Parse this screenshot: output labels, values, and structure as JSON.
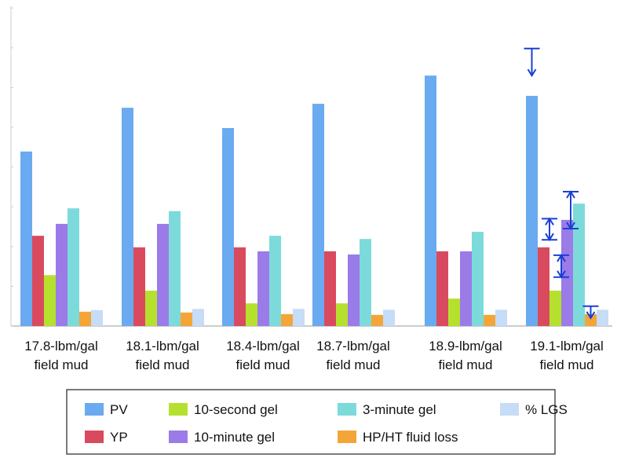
{
  "chart_data": {
    "type": "bar",
    "title": "",
    "xlabel": "",
    "ylabel": "",
    "ylim": [
      0,
      8
    ],
    "y_ticks_labeled": false,
    "grid": false,
    "legend_position": "bottom",
    "categories": [
      [
        "17.8-lbm/gal",
        "field mud"
      ],
      [
        "18.1-lbm/gal",
        "field mud"
      ],
      [
        "18.4-lbm/gal",
        "field mud"
      ],
      [
        "18.7-lbm/gal",
        "field mud"
      ],
      [
        "18.9-lbm/gal",
        "field mud"
      ],
      [
        "19.1-lbm/gal",
        "field mud"
      ]
    ],
    "series": [
      {
        "name": "PV",
        "color": "#6aaaf0",
        "values": [
          4.39,
          5.49,
          4.98,
          5.59,
          6.3,
          5.79
        ]
      },
      {
        "name": "YP",
        "color": "#d94a5e",
        "values": [
          2.27,
          1.98,
          1.98,
          1.88,
          1.88,
          1.98
        ]
      },
      {
        "name": "10-second gel",
        "color": "#b5e12e",
        "values": [
          1.28,
          0.89,
          0.57,
          0.57,
          0.69,
          0.89
        ]
      },
      {
        "name": "10-minute gel",
        "color": "#9b7be8",
        "values": [
          2.57,
          2.57,
          1.88,
          1.8,
          1.88,
          2.67
        ]
      },
      {
        "name": "3-minute gel",
        "color": "#7ddada",
        "values": [
          2.96,
          2.89,
          2.27,
          2.19,
          2.37,
          3.08
        ]
      },
      {
        "name": "HP/HT fluid loss",
        "color": "#f4a538",
        "values": [
          0.36,
          0.34,
          0.3,
          0.28,
          0.28,
          0.3
        ]
      },
      {
        "name": "% LGS",
        "color": "#c6dcf7",
        "values": [
          0.4,
          0.43,
          0.43,
          0.41,
          0.41,
          0.41
        ]
      }
    ],
    "annotations": [
      {
        "category": 5,
        "series": "PV",
        "from": 6.98,
        "to": 6.3,
        "style": "arrow-down"
      },
      {
        "category": 5,
        "series": "YP",
        "from": 2.7,
        "to": 2.17,
        "style": "double-arrow"
      },
      {
        "category": 5,
        "series": "10-second gel",
        "from": 1.78,
        "to": 1.23,
        "style": "double-arrow"
      },
      {
        "category": 5,
        "series": "10-minute gel",
        "from": 3.38,
        "to": 2.45,
        "style": "double-arrow"
      },
      {
        "category": 5,
        "series": "HP/HT fluid loss",
        "from": 0.5,
        "to": 0.2,
        "style": "arrow-down"
      }
    ],
    "annotation_color": "#1a3fd6",
    "legend_order": [
      "PV",
      "10-second gel",
      "3-minute gel",
      "% LGS",
      "YP",
      "10-minute gel",
      "HP/HT fluid loss"
    ]
  }
}
